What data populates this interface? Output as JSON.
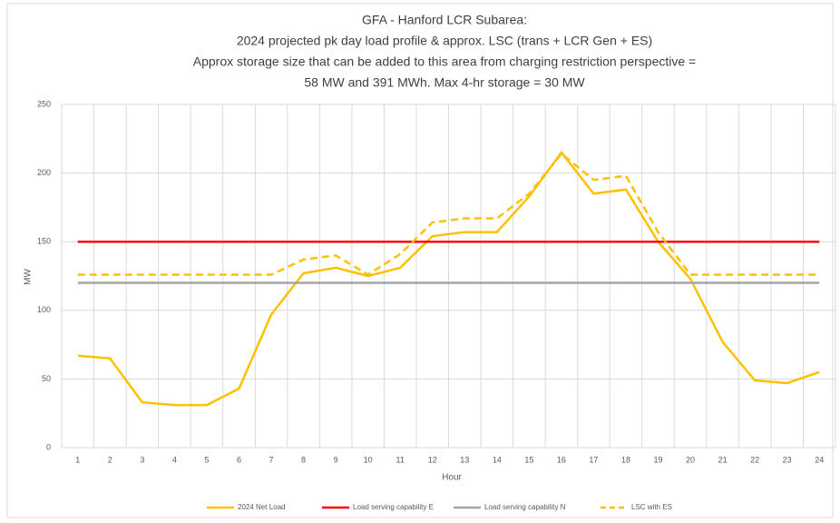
{
  "chart_data": {
    "type": "line",
    "title": [
      "GFA - Hanford LCR Subarea:",
      "2024 projected pk day load profile & approx. LSC (trans + LCR Gen + ES)",
      "Approx storage size that can be added to this area from charging restriction perspective =",
      "58 MW and 391 MWh. Max 4-hr storage = 30 MW"
    ],
    "x_label": "Hour",
    "y_label": "MW",
    "categories": [
      "1",
      "2",
      "3",
      "4",
      "5",
      "6",
      "7",
      "8",
      "9",
      "10",
      "11",
      "12",
      "13",
      "14",
      "15",
      "16",
      "17",
      "18",
      "19",
      "20",
      "21",
      "22",
      "23",
      "24"
    ],
    "ylim": [
      0,
      250
    ],
    "yticks": [
      0,
      50,
      100,
      150,
      200,
      250
    ],
    "grid": true,
    "legend": "bottom",
    "series": [
      {
        "name": "2024 Net Load",
        "color": "#FFC000",
        "dashed": false,
        "values": [
          67,
          65,
          33,
          31,
          31,
          43,
          97,
          127,
          131,
          125,
          131,
          154,
          157,
          157,
          183,
          215,
          185,
          188,
          150,
          123,
          77,
          49,
          47,
          55
        ]
      },
      {
        "name": "Load serving capability E",
        "color": "#FF0000",
        "dashed": false,
        "values": [
          150,
          150,
          150,
          150,
          150,
          150,
          150,
          150,
          150,
          150,
          150,
          150,
          150,
          150,
          150,
          150,
          150,
          150,
          150,
          150,
          150,
          150,
          150,
          150
        ]
      },
      {
        "name": "Load serving capability N",
        "color": "#A5A5A5",
        "dashed": false,
        "values": [
          120,
          120,
          120,
          120,
          120,
          120,
          120,
          120,
          120,
          120,
          120,
          120,
          120,
          120,
          120,
          120,
          120,
          120,
          120,
          120,
          120,
          120,
          120,
          120
        ]
      },
      {
        "name": "LSC with ES",
        "color": "#FFC000",
        "dashed": true,
        "values": [
          126,
          126,
          126,
          126,
          126,
          126,
          126,
          137,
          140,
          126,
          141,
          164,
          167,
          167,
          185,
          214,
          195,
          198,
          157,
          126,
          126,
          126,
          126,
          126
        ]
      }
    ]
  }
}
